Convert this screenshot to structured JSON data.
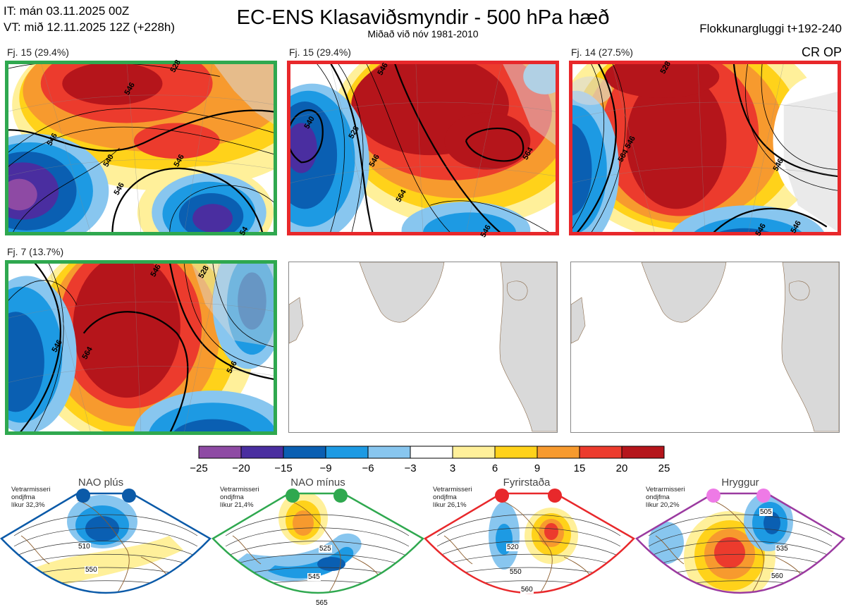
{
  "header": {
    "it_line": "IT: mán 03.11.2025 00Z",
    "vt_line": "VT: mið 12.11.2025 12Z  (+228h)",
    "title": "EC-ENS Klasaviðsmyndir - 500 hPa hæð",
    "subtitle": "Miðað við nóv 1981-2010",
    "window": "Flokkunargluggi t+192-240",
    "cr_op": "CR OP"
  },
  "clusters": [
    {
      "label": "Fj. 15 (29.4%)",
      "border": "#2fa84f",
      "contours": [
        "528",
        "546",
        "546",
        "540",
        "546",
        "546",
        "54"
      ]
    },
    {
      "label": "Fj. 15 (29.4%)",
      "border": "#e8282b",
      "contours": [
        "546",
        "528",
        "540",
        "546",
        "564",
        "564",
        "546"
      ]
    },
    {
      "label": "Fj. 14 (27.5%)",
      "border": "#e8282b",
      "contours": [
        "528",
        "546",
        "564",
        "546",
        "546",
        "546"
      ]
    },
    {
      "label": "Fj. 7 (13.7%)",
      "border": "#2fa84f",
      "contours": [
        "546",
        "528",
        "564",
        "546",
        "546"
      ]
    }
  ],
  "colorbar": {
    "colors": [
      "#8e4aa4",
      "#4a2ea0",
      "#0a5fb2",
      "#1d9ae3",
      "#88c6ef",
      "#ffffff",
      "#fff09a",
      "#ffd21a",
      "#f79a2e",
      "#ec3b2d",
      "#b5151b"
    ],
    "labels": [
      "−25",
      "−20",
      "−15",
      "−9",
      "−6",
      "−3",
      "3",
      "6",
      "9",
      "15",
      "20",
      "25"
    ]
  },
  "regimes": [
    {
      "title": "NAO plús",
      "note": [
        "Vetrarmisseri",
        "ondjfma",
        "líkur 32,3%"
      ],
      "color": "#0b5aa8",
      "contours": [
        "510",
        "550"
      ]
    },
    {
      "title": "NAO mínus",
      "note": [
        "Vetrarmisseri",
        "ondjfma",
        "líkur 21,4%"
      ],
      "color": "#2fa84f",
      "contours": [
        "525",
        "545",
        "565"
      ]
    },
    {
      "title": "Fyrirstaða",
      "note": [
        "Vetrarmisseri",
        "ondjfma",
        "líkur 26,1%"
      ],
      "color": "#e8282b",
      "contours": [
        "520",
        "550",
        "560"
      ]
    },
    {
      "title": "Hryggur",
      "note": [
        "Vetrarmisseri",
        "ondjfma",
        "líkur 20,2%"
      ],
      "color": "#9b3aa0",
      "contours": [
        "505",
        "535",
        "560"
      ]
    }
  ]
}
